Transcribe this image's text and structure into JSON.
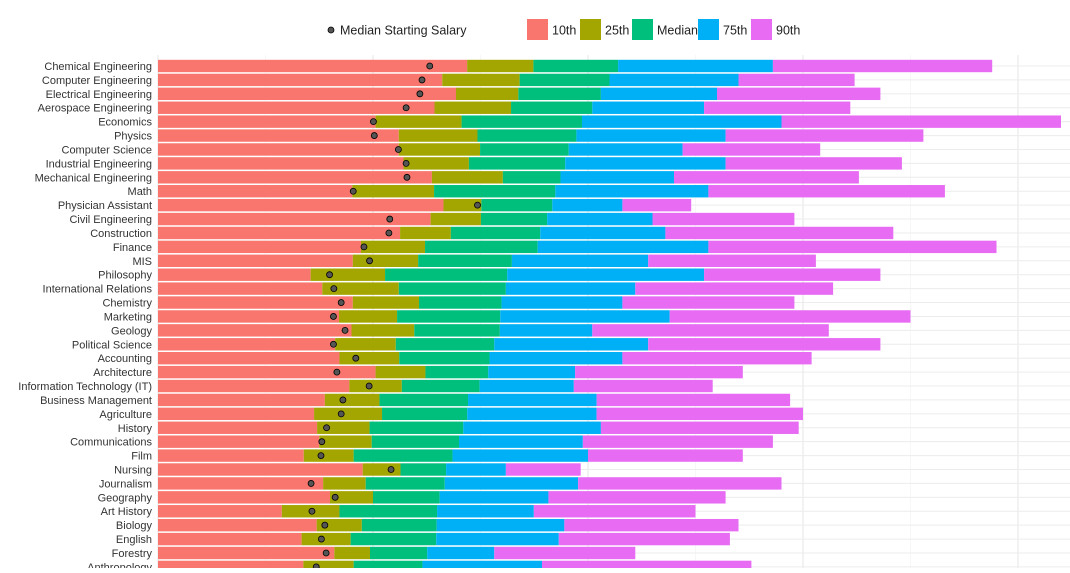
{
  "chart_data": {
    "type": "bar",
    "orientation": "horizontal",
    "title": "",
    "xlabel": "",
    "ylabel": "",
    "xlim": [
      0,
      212000
    ],
    "grid": true,
    "legend_position": "top",
    "legend": {
      "point_label": "Median Starting Salary",
      "bar_labels": [
        "10th",
        "25th",
        "Median",
        "75th",
        "90th"
      ]
    },
    "colors": {
      "10th": "#F8766D",
      "25th": "#A3A500",
      "Median": "#00BF7D",
      "75th": "#00B0F6",
      "90th": "#E76BF3",
      "point": "#555555"
    },
    "fields": [
      "major",
      "starting_median",
      "p10",
      "p25",
      "median",
      "p75",
      "p90"
    ],
    "rows": [
      [
        "Chemical Engineering",
        63200,
        71900,
        87300,
        107000,
        143000,
        194000
      ],
      [
        "Computer Engineering",
        61400,
        66100,
        84100,
        105000,
        135000,
        162000
      ],
      [
        "Electrical Engineering",
        60900,
        69300,
        83800,
        103000,
        130000,
        168000
      ],
      [
        "Aerospace Engineering",
        57700,
        64300,
        82100,
        101000,
        127000,
        161000
      ],
      [
        "Economics",
        50100,
        50600,
        70600,
        98600,
        145000,
        210000
      ],
      [
        "Physics",
        50300,
        56000,
        74300,
        97300,
        132000,
        178000
      ],
      [
        "Computer Science",
        55900,
        56000,
        74900,
        95500,
        122000,
        154000
      ],
      [
        "Industrial Engineering",
        57700,
        57100,
        72300,
        94700,
        132000,
        173000
      ],
      [
        "Mechanical Engineering",
        57900,
        63700,
        80200,
        93600,
        120000,
        163000
      ],
      [
        "Math",
        45400,
        45200,
        64200,
        92400,
        128000,
        183000
      ],
      [
        "Physician Assistant",
        74300,
        66400,
        75200,
        91700,
        108000,
        124000
      ],
      [
        "Civil Engineering",
        53900,
        63400,
        75100,
        90500,
        115000,
        148000
      ],
      [
        "Construction",
        53700,
        56300,
        68100,
        88900,
        118000,
        171000
      ],
      [
        "Finance",
        47900,
        47200,
        62100,
        88300,
        128000,
        195000
      ],
      [
        "MIS",
        49200,
        45300,
        60500,
        82300,
        114000,
        153000
      ],
      [
        "Philosophy",
        39900,
        35500,
        52800,
        81200,
        127000,
        168000
      ],
      [
        "International Relations",
        40900,
        38200,
        56000,
        80900,
        111000,
        157000
      ],
      [
        "Chemistry",
        42600,
        45300,
        60700,
        79900,
        108000,
        148000
      ],
      [
        "Marketing",
        40800,
        42100,
        55600,
        79600,
        119000,
        175000
      ],
      [
        "Geology",
        43500,
        45000,
        59600,
        79500,
        101000,
        156000
      ],
      [
        "Political Science",
        40800,
        41200,
        55300,
        78200,
        114000,
        168000
      ],
      [
        "Accounting",
        46000,
        42200,
        56100,
        77100,
        108000,
        152000
      ],
      [
        "Architecture",
        41600,
        50600,
        62200,
        76800,
        97000,
        136000
      ],
      [
        "Information Technology (IT)",
        49100,
        44500,
        56700,
        74800,
        96700,
        129000
      ],
      [
        "Business Management",
        43000,
        38800,
        51500,
        72100,
        102000,
        147000
      ],
      [
        "Agriculture",
        42600,
        36300,
        52100,
        71900,
        102000,
        150000
      ],
      [
        "History",
        39200,
        37000,
        49200,
        71000,
        103000,
        149000
      ],
      [
        "Communications",
        38100,
        37500,
        49700,
        70000,
        98800,
        143000
      ],
      [
        "Film",
        37900,
        33900,
        45500,
        68500,
        100000,
        136000
      ],
      [
        "Nursing",
        54200,
        47600,
        56400,
        67000,
        80900,
        98300
      ],
      [
        "Journalism",
        35600,
        38400,
        48300,
        66700,
        97700,
        145000
      ],
      [
        "Geography",
        41200,
        40000,
        50000,
        65500,
        90800,
        132000
      ],
      [
        "Art History",
        35800,
        28800,
        42200,
        64900,
        87400,
        125000
      ],
      [
        "Biology",
        38800,
        36900,
        47400,
        64800,
        94500,
        135000
      ],
      [
        "English",
        38000,
        33400,
        44800,
        64700,
        93200,
        133000
      ],
      [
        "Forestry",
        39100,
        41000,
        49300,
        62600,
        78200,
        111000
      ],
      [
        "Anthropology",
        36800,
        33800,
        45500,
        61500,
        89300,
        138000
      ]
    ]
  }
}
